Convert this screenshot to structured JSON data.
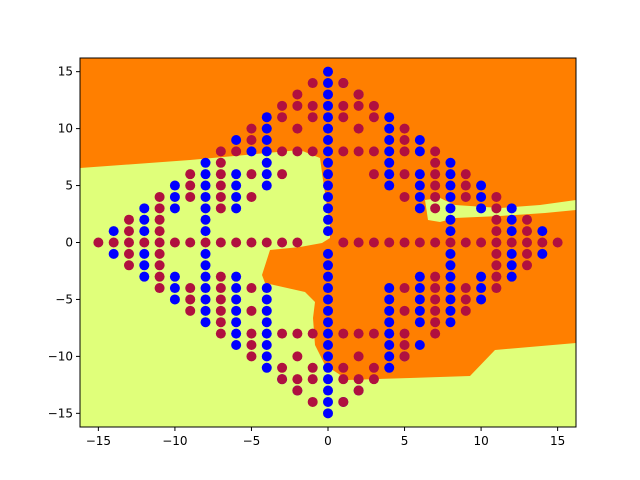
{
  "chart_data": {
    "type": "scatter",
    "title": "",
    "xlabel": "",
    "ylabel": "",
    "xlim": [
      -16.2,
      16.2
    ],
    "ylim": [
      -16.2,
      16.2
    ],
    "xticks": [
      -15,
      -10,
      -5,
      0,
      5,
      10,
      15
    ],
    "yticks": [
      -15,
      -10,
      -5,
      0,
      5,
      10,
      15
    ],
    "grid": false,
    "legend": "none",
    "background": {
      "description": "decision regions of a binary classifier",
      "colors": {
        "class_a_region": "#ff7f00",
        "class_b_region": "#e0ff7a"
      }
    },
    "series": [
      {
        "color": "#0000ff",
        "points": [
          [
            0,
            15
          ],
          [
            0,
            14
          ],
          [
            0,
            13
          ],
          [
            0,
            12
          ],
          [
            0,
            11
          ],
          [
            0,
            10
          ],
          [
            0,
            9
          ],
          [
            0,
            8
          ],
          [
            0,
            7
          ],
          [
            0,
            6
          ],
          [
            0,
            5
          ],
          [
            0,
            4
          ],
          [
            0,
            3
          ],
          [
            0,
            2
          ],
          [
            0,
            1
          ],
          [
            0,
            -1
          ],
          [
            0,
            -2
          ],
          [
            0,
            -3
          ],
          [
            0,
            -4
          ],
          [
            0,
            -5
          ],
          [
            0,
            -6
          ],
          [
            0,
            -7
          ],
          [
            0,
            -8
          ],
          [
            0,
            -9
          ],
          [
            0,
            -10
          ],
          [
            0,
            -11
          ],
          [
            0,
            -12
          ],
          [
            0,
            -13
          ],
          [
            0,
            -14
          ],
          [
            0,
            -15
          ],
          [
            1,
            14
          ],
          [
            2,
            13
          ],
          [
            1,
            -14
          ],
          [
            2,
            -13
          ],
          [
            -4,
            11
          ],
          [
            -4,
            10
          ],
          [
            -4,
            9
          ],
          [
            -4,
            8
          ],
          [
            -4,
            7
          ],
          [
            -4,
            6
          ],
          [
            -4,
            5
          ],
          [
            -4,
            -4
          ],
          [
            -4,
            -5
          ],
          [
            -4,
            -6
          ],
          [
            -4,
            -7
          ],
          [
            -4,
            -8
          ],
          [
            -4,
            -9
          ],
          [
            -4,
            -10
          ],
          [
            -4,
            -11
          ],
          [
            -3,
            -12
          ],
          [
            -2,
            -13
          ],
          [
            4,
            11
          ],
          [
            4,
            10
          ],
          [
            4,
            9
          ],
          [
            4,
            8
          ],
          [
            4,
            7
          ],
          [
            4,
            6
          ],
          [
            4,
            5
          ],
          [
            4,
            -4
          ],
          [
            4,
            -5
          ],
          [
            4,
            -6
          ],
          [
            4,
            -7
          ],
          [
            4,
            -8
          ],
          [
            4,
            -9
          ],
          [
            4,
            -10
          ],
          [
            4,
            -11
          ],
          [
            5,
            -10
          ],
          [
            6,
            -9
          ],
          [
            -5,
            8
          ],
          [
            -6,
            9
          ],
          [
            -6,
            6
          ],
          [
            -6,
            5
          ],
          [
            -6,
            4
          ],
          [
            -6,
            3
          ],
          [
            -6,
            -3
          ],
          [
            -6,
            -4
          ],
          [
            -6,
            -5
          ],
          [
            -6,
            -6
          ],
          [
            -6,
            -7
          ],
          [
            -6,
            -8
          ],
          [
            -6,
            -9
          ],
          [
            6,
            8
          ],
          [
            6,
            9
          ],
          [
            6,
            6
          ],
          [
            6,
            5
          ],
          [
            6,
            4
          ],
          [
            6,
            3
          ],
          [
            6,
            -3
          ],
          [
            6,
            -4
          ],
          [
            6,
            -5
          ],
          [
            6,
            -6
          ],
          [
            6,
            -7
          ],
          [
            -8,
            7
          ],
          [
            -8,
            6
          ],
          [
            -8,
            5
          ],
          [
            -8,
            4
          ],
          [
            -8,
            3
          ],
          [
            -8,
            2
          ],
          [
            -8,
            1
          ],
          [
            -8,
            -1
          ],
          [
            -8,
            -2
          ],
          [
            -8,
            -3
          ],
          [
            -8,
            -4
          ],
          [
            -8,
            -5
          ],
          [
            -8,
            -6
          ],
          [
            -8,
            -7
          ],
          [
            8,
            7
          ],
          [
            8,
            6
          ],
          [
            8,
            5
          ],
          [
            8,
            4
          ],
          [
            8,
            3
          ],
          [
            8,
            2
          ],
          [
            8,
            1
          ],
          [
            8,
            -1
          ],
          [
            8,
            -2
          ],
          [
            8,
            -3
          ],
          [
            8,
            -4
          ],
          [
            8,
            -5
          ],
          [
            8,
            -6
          ],
          [
            8,
            -7
          ],
          [
            -10,
            5
          ],
          [
            -10,
            4
          ],
          [
            -10,
            3
          ],
          [
            -10,
            -3
          ],
          [
            -10,
            -4
          ],
          [
            -10,
            -5
          ],
          [
            10,
            5
          ],
          [
            10,
            4
          ],
          [
            10,
            3
          ],
          [
            10,
            -3
          ],
          [
            10,
            -4
          ],
          [
            10,
            -5
          ],
          [
            -12,
            3
          ],
          [
            -12,
            2
          ],
          [
            -12,
            1
          ],
          [
            -12,
            -1
          ],
          [
            -12,
            -2
          ],
          [
            -12,
            -3
          ],
          [
            12,
            3
          ],
          [
            12,
            2
          ],
          [
            12,
            1
          ],
          [
            12,
            -1
          ],
          [
            12,
            -2
          ],
          [
            12,
            -3
          ],
          [
            -14,
            1
          ],
          [
            -14,
            -1
          ],
          [
            14,
            1
          ],
          [
            14,
            -1
          ]
        ]
      },
      {
        "color": "#b0103f",
        "points": [
          [
            -15,
            0
          ],
          [
            -14,
            0
          ],
          [
            -13,
            0
          ],
          [
            -12,
            0
          ],
          [
            -11,
            0
          ],
          [
            -10,
            0
          ],
          [
            -9,
            0
          ],
          [
            -8,
            0
          ],
          [
            -7,
            0
          ],
          [
            -6,
            0
          ],
          [
            -5,
            0
          ],
          [
            -4,
            0
          ],
          [
            -3,
            0
          ],
          [
            -2,
            0
          ],
          [
            1,
            0
          ],
          [
            2,
            0
          ],
          [
            3,
            0
          ],
          [
            4,
            0
          ],
          [
            5,
            0
          ],
          [
            6,
            0
          ],
          [
            7,
            0
          ],
          [
            8,
            0
          ],
          [
            9,
            0
          ],
          [
            10,
            0
          ],
          [
            11,
            0
          ],
          [
            12,
            0
          ],
          [
            13,
            0
          ],
          [
            14,
            0
          ],
          [
            15,
            0
          ],
          [
            -1,
            14
          ],
          [
            1,
            14
          ],
          [
            -2,
            13
          ],
          [
            2,
            13
          ],
          [
            -3,
            12
          ],
          [
            -2,
            12
          ],
          [
            -1,
            12
          ],
          [
            1,
            12
          ],
          [
            2,
            12
          ],
          [
            3,
            12
          ],
          [
            -1,
            11
          ],
          [
            1,
            11
          ],
          [
            -3,
            11
          ],
          [
            3,
            11
          ],
          [
            -2,
            10
          ],
          [
            2,
            10
          ],
          [
            -5,
            10
          ],
          [
            5,
            10
          ],
          [
            -5,
            9
          ],
          [
            5,
            9
          ],
          [
            -7,
            8
          ],
          [
            -6,
            8
          ],
          [
            -3,
            8
          ],
          [
            -2,
            8
          ],
          [
            -1,
            8
          ],
          [
            1,
            8
          ],
          [
            2,
            8
          ],
          [
            3,
            8
          ],
          [
            5,
            8
          ],
          [
            7,
            8
          ],
          [
            -7,
            7
          ],
          [
            7,
            7
          ],
          [
            -9,
            6
          ],
          [
            -7,
            6
          ],
          [
            -5,
            6
          ],
          [
            -3,
            6
          ],
          [
            3,
            6
          ],
          [
            5,
            6
          ],
          [
            7,
            6
          ],
          [
            9,
            6
          ],
          [
            -9,
            5
          ],
          [
            -7,
            5
          ],
          [
            7,
            5
          ],
          [
            9,
            5
          ],
          [
            -11,
            4
          ],
          [
            -9,
            4
          ],
          [
            -7,
            4
          ],
          [
            -5,
            4
          ],
          [
            5,
            4
          ],
          [
            7,
            4
          ],
          [
            9,
            4
          ],
          [
            11,
            4
          ],
          [
            -11,
            3
          ],
          [
            -7,
            3
          ],
          [
            7,
            3
          ],
          [
            11,
            3
          ],
          [
            -13,
            2
          ],
          [
            -11,
            2
          ],
          [
            11,
            2
          ],
          [
            13,
            2
          ],
          [
            -13,
            1
          ],
          [
            -11,
            1
          ],
          [
            11,
            1
          ],
          [
            13,
            1
          ],
          [
            -13,
            -1
          ],
          [
            -11,
            -1
          ],
          [
            11,
            -1
          ],
          [
            13,
            -1
          ],
          [
            -13,
            -2
          ],
          [
            -11,
            -2
          ],
          [
            11,
            -2
          ],
          [
            13,
            -2
          ],
          [
            -11,
            -3
          ],
          [
            -7,
            -3
          ],
          [
            7,
            -3
          ],
          [
            11,
            -3
          ],
          [
            -11,
            -4
          ],
          [
            -9,
            -4
          ],
          [
            -7,
            -4
          ],
          [
            -5,
            -4
          ],
          [
            5,
            -4
          ],
          [
            7,
            -4
          ],
          [
            9,
            -4
          ],
          [
            11,
            -4
          ],
          [
            -9,
            -5
          ],
          [
            -7,
            -5
          ],
          [
            7,
            -5
          ],
          [
            9,
            -5
          ],
          [
            -9,
            -6
          ],
          [
            -7,
            -6
          ],
          [
            -5,
            -6
          ],
          [
            5,
            -6
          ],
          [
            7,
            -6
          ],
          [
            9,
            -6
          ],
          [
            -7,
            -7
          ],
          [
            7,
            -7
          ],
          [
            -7,
            -8
          ],
          [
            -5,
            -8
          ],
          [
            -3,
            -8
          ],
          [
            -2,
            -8
          ],
          [
            -1,
            -8
          ],
          [
            1,
            -8
          ],
          [
            2,
            -8
          ],
          [
            3,
            -8
          ],
          [
            5,
            -8
          ],
          [
            7,
            -8
          ],
          [
            -5,
            -9
          ],
          [
            5,
            -9
          ],
          [
            -5,
            -10
          ],
          [
            -2,
            -10
          ],
          [
            2,
            -10
          ],
          [
            5,
            -10
          ],
          [
            -3,
            -11
          ],
          [
            -1,
            -11
          ],
          [
            1,
            -11
          ],
          [
            3,
            -11
          ],
          [
            -3,
            -12
          ],
          [
            -2,
            -12
          ],
          [
            -1,
            -12
          ],
          [
            1,
            -12
          ],
          [
            2,
            -12
          ],
          [
            3,
            -12
          ],
          [
            -2,
            -13
          ],
          [
            2,
            -13
          ],
          [
            -1,
            -14
          ],
          [
            1,
            -14
          ]
        ]
      }
    ]
  }
}
